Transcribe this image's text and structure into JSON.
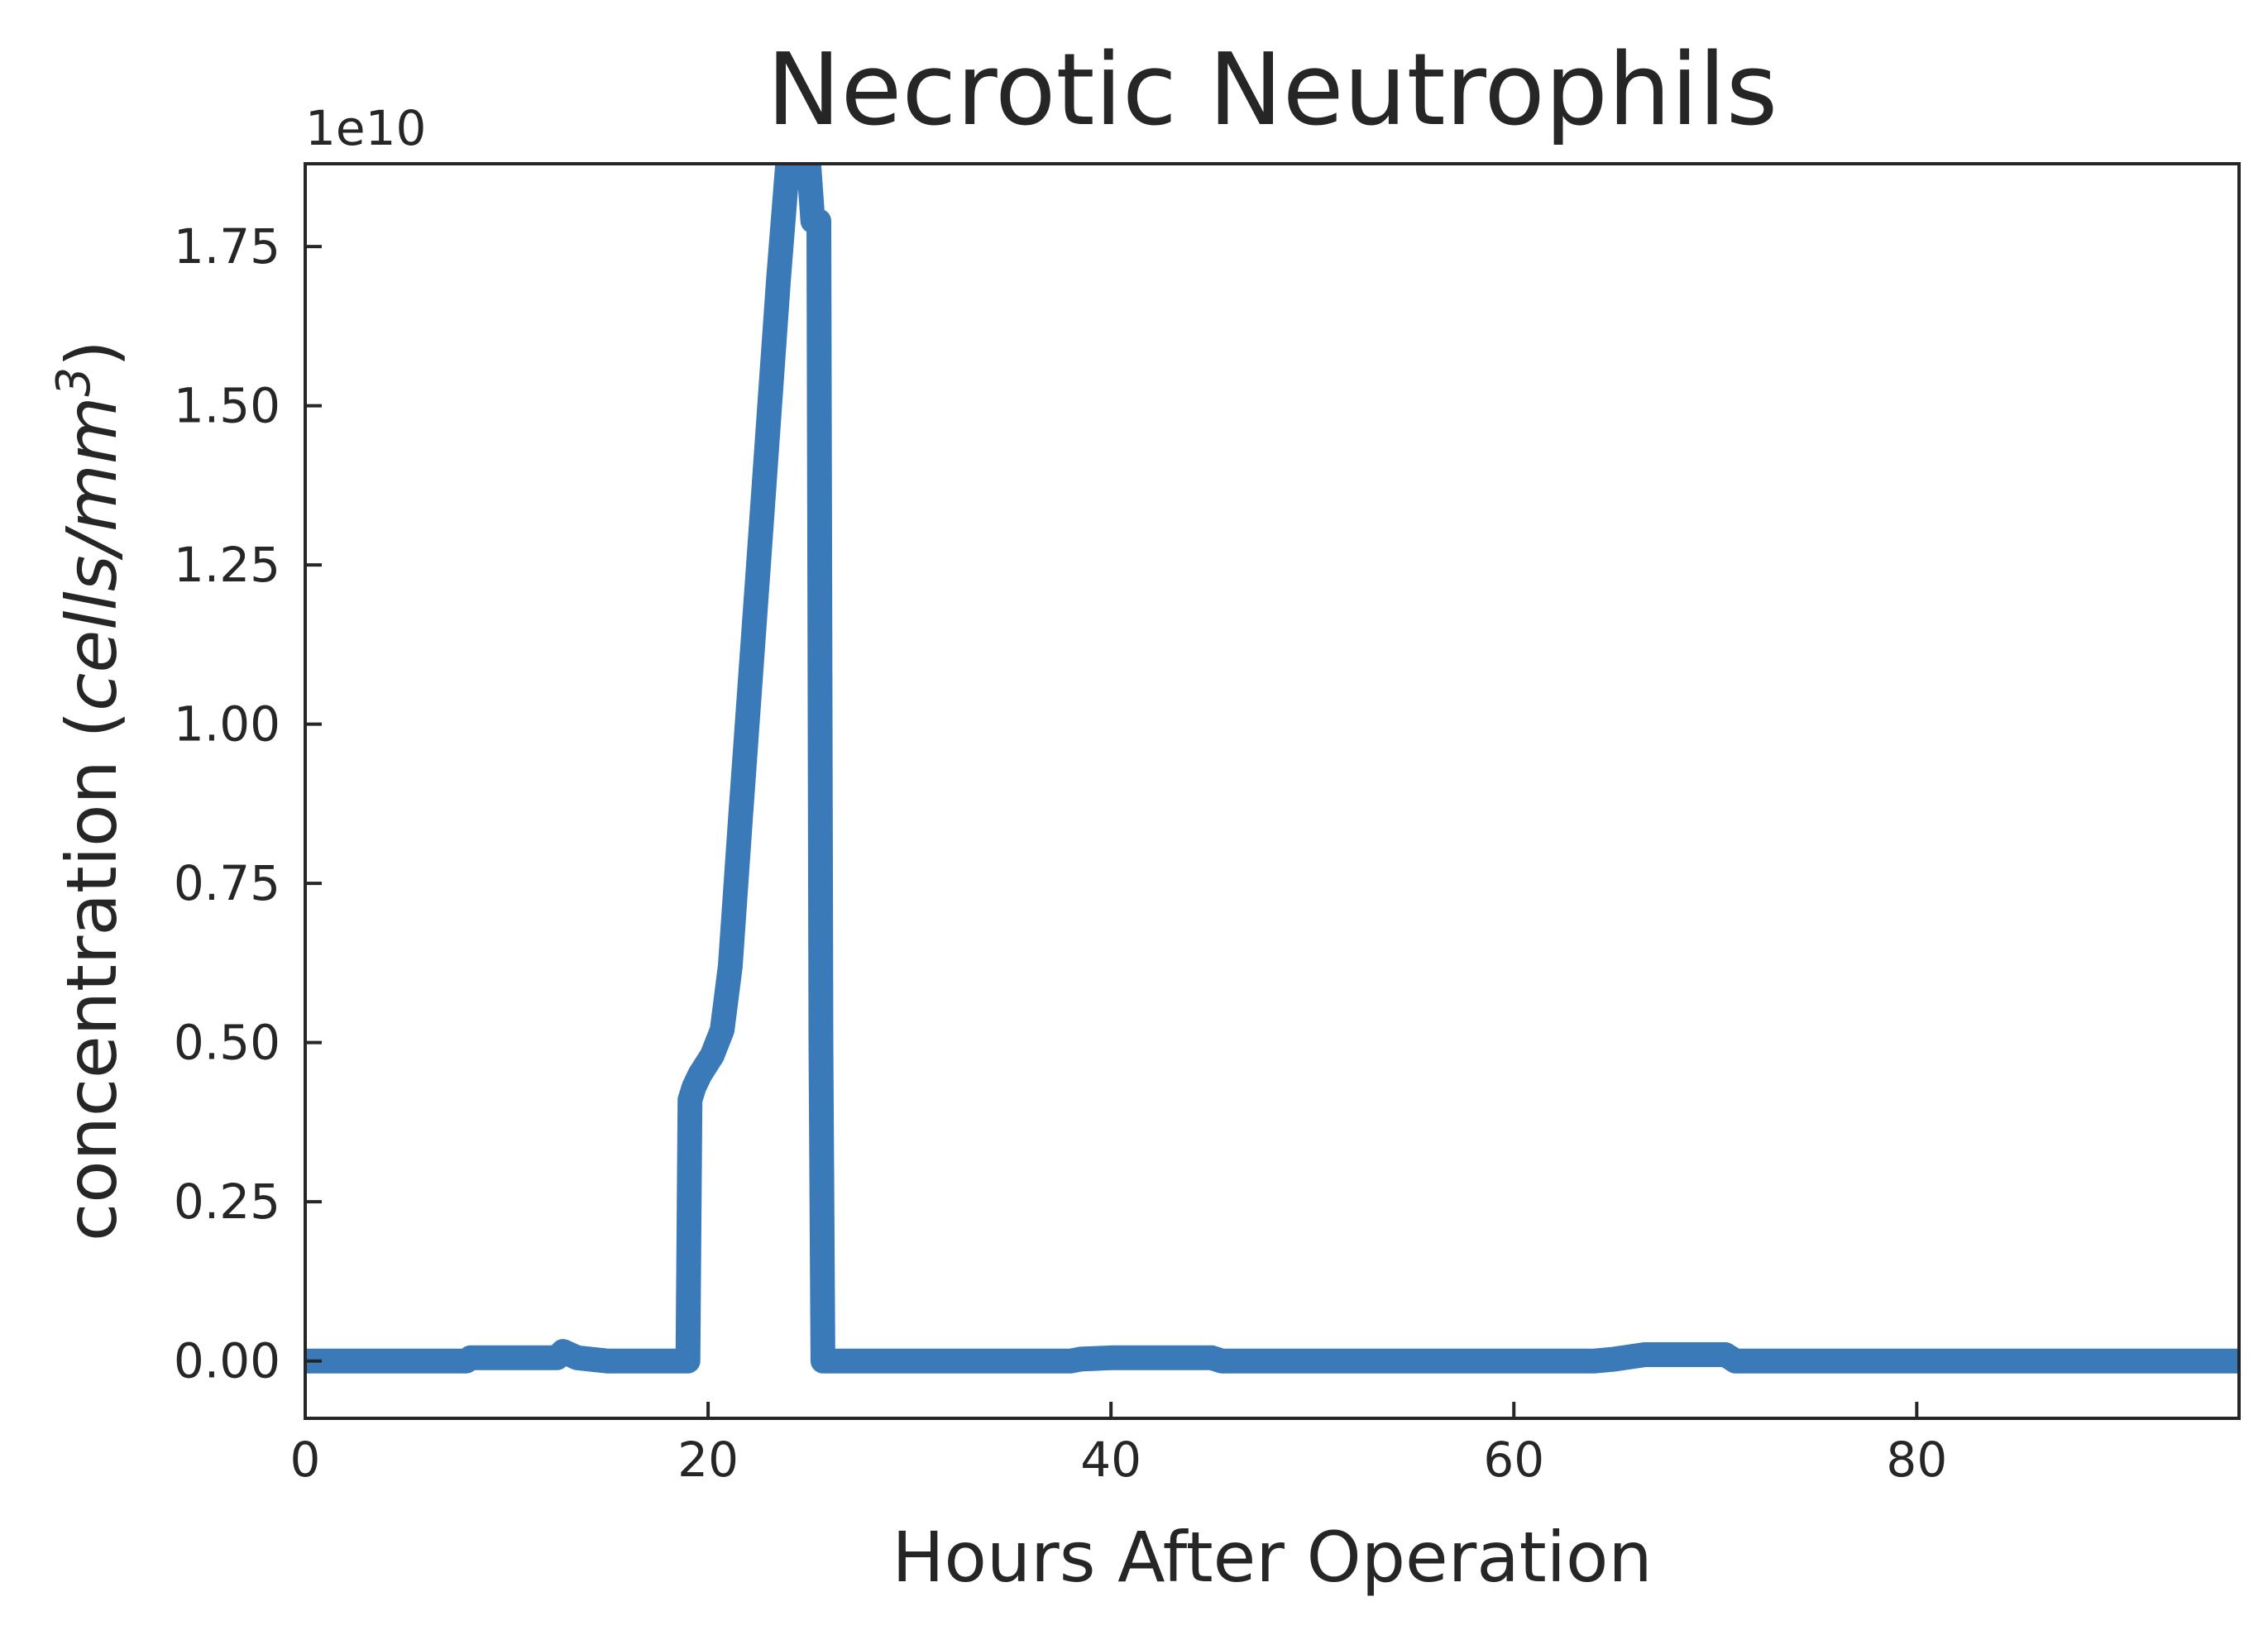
{
  "chart_data": {
    "type": "line",
    "title": "Necrotic Neutrophils",
    "xlabel": "Hours After Operation",
    "ylabel_prefix": "concentration (",
    "ylabel_unit_base": "cells/mm",
    "ylabel_unit_exp": "3",
    "ylabel_suffix": ")",
    "y_offset_label": "1e10",
    "xlim": [
      0,
      96
    ],
    "ylim": [
      -0.09,
      1.88
    ],
    "x_ticks": [
      0,
      20,
      40,
      60,
      80
    ],
    "x_tick_labels": [
      "0",
      "20",
      "40",
      "60",
      "80"
    ],
    "y_ticks": [
      0.0,
      0.25,
      0.5,
      0.75,
      1.0,
      1.25,
      1.5,
      1.75
    ],
    "y_tick_labels": [
      "0.00",
      "0.25",
      "0.50",
      "0.75",
      "1.00",
      "1.25",
      "1.50",
      "1.75"
    ],
    "grid": false,
    "legend": "none",
    "series": [
      {
        "color": "#3a7ab8",
        "x": [
          0,
          8,
          8.2,
          12.5,
          12.8,
          13.5,
          15,
          19,
          19.1,
          19.3,
          19.6,
          20.2,
          20.7,
          21.1,
          21.6,
          22.5,
          23.5,
          24.5,
          25.2,
          25.5,
          25.6,
          25.7,
          30,
          38,
          38.5,
          40,
          45,
          45.5,
          50,
          60,
          64,
          65,
          66.5,
          70.5,
          71,
          80,
          96
        ],
        "y": [
          0.0,
          0.0,
          0.005,
          0.005,
          0.015,
          0.005,
          0.0,
          0.0,
          0.41,
          0.43,
          0.45,
          0.48,
          0.52,
          0.62,
          0.85,
          1.25,
          1.7,
          2.1,
          1.79,
          1.79,
          0.5,
          0.0,
          0.0,
          0.0,
          0.003,
          0.005,
          0.005,
          0.0,
          0.0,
          0.0,
          0.0,
          0.003,
          0.01,
          0.01,
          0.0,
          0.0,
          0.0
        ]
      }
    ]
  }
}
